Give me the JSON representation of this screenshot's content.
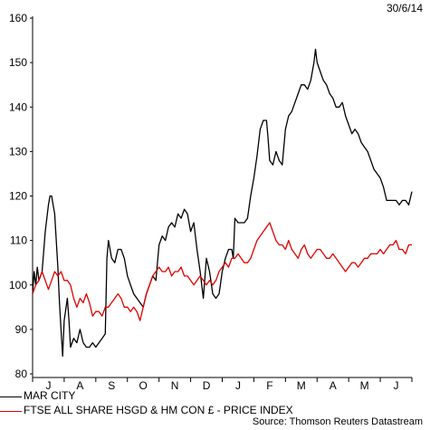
{
  "date_label": "30/6/14",
  "source": "Source: Thomson Reuters Datastream",
  "chart_data": {
    "type": "line",
    "title": "",
    "xlabel": "",
    "ylabel": "",
    "ylim": [
      80,
      160
    ],
    "yticks": [
      80,
      90,
      100,
      110,
      120,
      130,
      140,
      150,
      160
    ],
    "grid": false,
    "legend_position": "bottom-left",
    "month_labels": [
      "J",
      "A",
      "S",
      "O",
      "N",
      "D",
      "J",
      "F",
      "M",
      "A",
      "M",
      "J"
    ],
    "x_unit": "months since 1 Jul 2013 (0 = 1 Jul 2013, 12 = 30 Jun 2014)",
    "series": [
      {
        "name": "MAR CITY",
        "color": "#000000",
        "points": [
          [
            0.0,
            98
          ],
          [
            0.05,
            103
          ],
          [
            0.1,
            100
          ],
          [
            0.15,
            104
          ],
          [
            0.2,
            101
          ],
          [
            0.3,
            103
          ],
          [
            0.4,
            112
          ],
          [
            0.5,
            118
          ],
          [
            0.55,
            120
          ],
          [
            0.6,
            120
          ],
          [
            0.7,
            116
          ],
          [
            0.8,
            104
          ],
          [
            0.85,
            96
          ],
          [
            0.9,
            90
          ],
          [
            0.95,
            84
          ],
          [
            1.0,
            92
          ],
          [
            1.1,
            97
          ],
          [
            1.15,
            92
          ],
          [
            1.2,
            86
          ],
          [
            1.3,
            88
          ],
          [
            1.4,
            87
          ],
          [
            1.5,
            90
          ],
          [
            1.6,
            87
          ],
          [
            1.7,
            86
          ],
          [
            1.8,
            86
          ],
          [
            1.9,
            87
          ],
          [
            2.0,
            86
          ],
          [
            2.1,
            87
          ],
          [
            2.2,
            88
          ],
          [
            2.3,
            89
          ],
          [
            2.35,
            106
          ],
          [
            2.4,
            110
          ],
          [
            2.5,
            106
          ],
          [
            2.6,
            105
          ],
          [
            2.7,
            108
          ],
          [
            2.8,
            108
          ],
          [
            2.9,
            106
          ],
          [
            3.0,
            102
          ],
          [
            3.1,
            100
          ],
          [
            3.2,
            98
          ],
          [
            3.3,
            97
          ],
          [
            3.4,
            96
          ],
          [
            3.5,
            95
          ],
          [
            3.6,
            98
          ],
          [
            3.7,
            100
          ],
          [
            3.8,
            102
          ],
          [
            3.9,
            101
          ],
          [
            4.0,
            109
          ],
          [
            4.1,
            111
          ],
          [
            4.2,
            110
          ],
          [
            4.3,
            113
          ],
          [
            4.4,
            114
          ],
          [
            4.5,
            113
          ],
          [
            4.6,
            116
          ],
          [
            4.7,
            115
          ],
          [
            4.8,
            117
          ],
          [
            4.9,
            116
          ],
          [
            5.0,
            112
          ],
          [
            5.1,
            114
          ],
          [
            5.2,
            108
          ],
          [
            5.3,
            103
          ],
          [
            5.4,
            97
          ],
          [
            5.5,
            106
          ],
          [
            5.6,
            103
          ],
          [
            5.7,
            98
          ],
          [
            5.8,
            97
          ],
          [
            5.9,
            98
          ],
          [
            6.0,
            103
          ],
          [
            6.1,
            106
          ],
          [
            6.2,
            108
          ],
          [
            6.3,
            108
          ],
          [
            6.35,
            106
          ],
          [
            6.4,
            115
          ],
          [
            6.5,
            114
          ],
          [
            6.6,
            114
          ],
          [
            6.7,
            114
          ],
          [
            6.8,
            115
          ],
          [
            6.9,
            120
          ],
          [
            7.0,
            124
          ],
          [
            7.1,
            129
          ],
          [
            7.2,
            135
          ],
          [
            7.3,
            137
          ],
          [
            7.4,
            137
          ],
          [
            7.45,
            133
          ],
          [
            7.5,
            128
          ],
          [
            7.6,
            127
          ],
          [
            7.7,
            130
          ],
          [
            7.8,
            128
          ],
          [
            7.9,
            127
          ],
          [
            8.0,
            135
          ],
          [
            8.1,
            138
          ],
          [
            8.2,
            139
          ],
          [
            8.3,
            141
          ],
          [
            8.4,
            143
          ],
          [
            8.5,
            145
          ],
          [
            8.6,
            145
          ],
          [
            8.7,
            144
          ],
          [
            8.8,
            146
          ],
          [
            8.9,
            150
          ],
          [
            8.95,
            153
          ],
          [
            9.0,
            150
          ],
          [
            9.1,
            148
          ],
          [
            9.2,
            146
          ],
          [
            9.3,
            145
          ],
          [
            9.4,
            143
          ],
          [
            9.5,
            142
          ],
          [
            9.6,
            140
          ],
          [
            9.7,
            140
          ],
          [
            9.8,
            141
          ],
          [
            9.9,
            138
          ],
          [
            10.0,
            136
          ],
          [
            10.1,
            134
          ],
          [
            10.2,
            135
          ],
          [
            10.3,
            134
          ],
          [
            10.4,
            132
          ],
          [
            10.5,
            131
          ],
          [
            10.6,
            130
          ],
          [
            10.7,
            128
          ],
          [
            10.8,
            126
          ],
          [
            10.9,
            125
          ],
          [
            11.0,
            124
          ],
          [
            11.1,
            122
          ],
          [
            11.2,
            119
          ],
          [
            11.3,
            119
          ],
          [
            11.4,
            119
          ],
          [
            11.5,
            119
          ],
          [
            11.6,
            118
          ],
          [
            11.7,
            119
          ],
          [
            11.8,
            119
          ],
          [
            11.9,
            118
          ],
          [
            12.0,
            121
          ]
        ]
      },
      {
        "name": "FTSE ALL SHARE HSGD & HM CON £ - PRICE INDEX",
        "color": "#e00000",
        "points": [
          [
            0.0,
            98
          ],
          [
            0.1,
            100
          ],
          [
            0.2,
            101
          ],
          [
            0.3,
            103
          ],
          [
            0.4,
            101
          ],
          [
            0.5,
            99
          ],
          [
            0.6,
            101
          ],
          [
            0.7,
            103
          ],
          [
            0.8,
            102
          ],
          [
            0.9,
            103
          ],
          [
            1.0,
            101
          ],
          [
            1.1,
            101
          ],
          [
            1.2,
            100
          ],
          [
            1.3,
            97
          ],
          [
            1.4,
            95
          ],
          [
            1.5,
            97
          ],
          [
            1.6,
            96
          ],
          [
            1.7,
            98
          ],
          [
            1.8,
            96
          ],
          [
            1.9,
            93
          ],
          [
            2.0,
            94
          ],
          [
            2.1,
            94
          ],
          [
            2.2,
            93
          ],
          [
            2.3,
            95
          ],
          [
            2.4,
            95
          ],
          [
            2.5,
            96
          ],
          [
            2.6,
            97
          ],
          [
            2.7,
            98
          ],
          [
            2.8,
            97
          ],
          [
            2.9,
            95
          ],
          [
            3.0,
            95
          ],
          [
            3.1,
            94
          ],
          [
            3.2,
            95
          ],
          [
            3.3,
            94
          ],
          [
            3.4,
            92
          ],
          [
            3.5,
            95
          ],
          [
            3.6,
            98
          ],
          [
            3.7,
            100
          ],
          [
            3.8,
            102
          ],
          [
            3.9,
            103
          ],
          [
            4.0,
            104
          ],
          [
            4.1,
            103
          ],
          [
            4.2,
            103
          ],
          [
            4.3,
            104
          ],
          [
            4.4,
            102
          ],
          [
            4.5,
            103
          ],
          [
            4.6,
            103
          ],
          [
            4.7,
            104
          ],
          [
            4.8,
            102
          ],
          [
            4.9,
            102
          ],
          [
            5.0,
            101
          ],
          [
            5.1,
            100
          ],
          [
            5.2,
            101
          ],
          [
            5.3,
            102
          ],
          [
            5.4,
            101
          ],
          [
            5.5,
            100
          ],
          [
            5.6,
            101
          ],
          [
            5.7,
            100
          ],
          [
            5.8,
            101
          ],
          [
            5.9,
            103
          ],
          [
            6.0,
            104
          ],
          [
            6.1,
            105
          ],
          [
            6.2,
            104
          ],
          [
            6.3,
            106
          ],
          [
            6.4,
            106
          ],
          [
            6.5,
            107
          ],
          [
            6.6,
            106
          ],
          [
            6.7,
            105
          ],
          [
            6.8,
            105
          ],
          [
            6.9,
            106
          ],
          [
            7.0,
            108
          ],
          [
            7.1,
            110
          ],
          [
            7.2,
            111
          ],
          [
            7.3,
            112
          ],
          [
            7.4,
            113
          ],
          [
            7.5,
            114
          ],
          [
            7.6,
            112
          ],
          [
            7.7,
            110
          ],
          [
            7.8,
            109
          ],
          [
            7.9,
            109
          ],
          [
            8.0,
            108
          ],
          [
            8.1,
            110
          ],
          [
            8.2,
            108
          ],
          [
            8.3,
            107
          ],
          [
            8.4,
            106
          ],
          [
            8.5,
            108
          ],
          [
            8.6,
            109
          ],
          [
            8.7,
            107
          ],
          [
            8.8,
            106
          ],
          [
            8.9,
            107
          ],
          [
            9.0,
            108
          ],
          [
            9.1,
            108
          ],
          [
            9.2,
            107
          ],
          [
            9.3,
            106
          ],
          [
            9.4,
            106
          ],
          [
            9.5,
            107
          ],
          [
            9.6,
            106
          ],
          [
            9.7,
            105
          ],
          [
            9.8,
            104
          ],
          [
            9.9,
            103
          ],
          [
            10.0,
            104
          ],
          [
            10.1,
            105
          ],
          [
            10.2,
            105
          ],
          [
            10.3,
            104
          ],
          [
            10.4,
            105
          ],
          [
            10.5,
            106
          ],
          [
            10.6,
            106
          ],
          [
            10.7,
            107
          ],
          [
            10.8,
            107
          ],
          [
            10.9,
            107
          ],
          [
            11.0,
            108
          ],
          [
            11.1,
            107
          ],
          [
            11.2,
            108
          ],
          [
            11.3,
            109
          ],
          [
            11.4,
            109
          ],
          [
            11.5,
            110
          ],
          [
            11.6,
            108
          ],
          [
            11.7,
            108
          ],
          [
            11.8,
            107
          ],
          [
            11.9,
            109
          ],
          [
            12.0,
            109
          ]
        ]
      }
    ]
  }
}
